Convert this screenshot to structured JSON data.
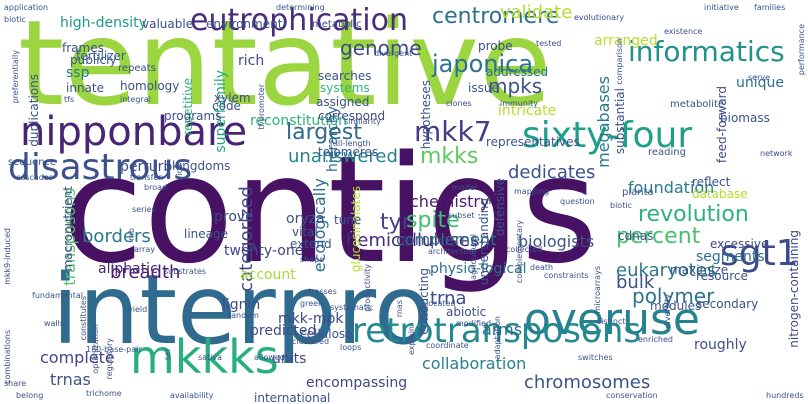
{
  "words": [
    {
      "text": "tentative",
      "color": "#9bd640",
      "rotate": 0
    },
    {
      "text": "contigs",
      "color": "#471164",
      "rotate": 0
    },
    {
      "text": "interpro",
      "color": "#2f6b8e",
      "rotate": 0
    },
    {
      "text": "nipponbare",
      "color": "#482475",
      "rotate": 0
    },
    {
      "text": "sixty-four",
      "color": "#1fa088",
      "rotate": 0
    },
    {
      "text": "disastrous",
      "color": "#3b528b",
      "rotate": 0
    },
    {
      "text": "overuse",
      "color": "#26828e",
      "rotate": 0
    },
    {
      "text": "retrotransposons",
      "color": "#23898e",
      "rotate": 0
    },
    {
      "text": "mkkks",
      "color": "#28ae80",
      "rotate": 0
    },
    {
      "text": "eutrophication",
      "color": "#472d7b",
      "rotate": 0
    },
    {
      "text": "centromere",
      "color": "#2c728e",
      "rotate": 0
    },
    {
      "text": "informatics",
      "color": "#21918c",
      "rotate": 0
    },
    {
      "text": "mkk7",
      "color": "#433e85",
      "rotate": 0
    },
    {
      "text": "mkks",
      "color": "#5ec962",
      "rotate": 0
    },
    {
      "text": "largest",
      "color": "#31688e",
      "rotate": 0
    },
    {
      "text": "sgt1",
      "color": "#3e4a89",
      "rotate": 0
    },
    {
      "text": "revolution",
      "color": "#2db27d",
      "rotate": 0
    },
    {
      "text": "unanswered",
      "color": "#25858e",
      "rotate": 0
    },
    {
      "text": "eukaryotes",
      "color": "#2a788e",
      "rotate": 0
    },
    {
      "text": "chromosomes",
      "color": "#3b528b",
      "rotate": 0
    },
    {
      "text": "hemicelluloses",
      "color": "#482878",
      "rotate": 0
    },
    {
      "text": "physio-logical",
      "color": "#2c728e",
      "rotate": 0
    },
    {
      "text": "breadth",
      "color": "#482071",
      "rotate": 0
    },
    {
      "text": "twenty-one",
      "color": "#414487",
      "rotate": 0
    },
    {
      "text": "complete",
      "color": "#414487",
      "rotate": 0
    },
    {
      "text": "collaboration",
      "color": "#26828e",
      "rotate": 0
    },
    {
      "text": "encompassing",
      "color": "#3f4889",
      "rotate": 0
    },
    {
      "text": "validate",
      "color": "#b5de2b",
      "rotate": 0
    },
    {
      "text": "tyr",
      "color": "#414487",
      "rotate": 0
    },
    {
      "text": "spite",
      "color": "#44bf70",
      "rotate": 0
    },
    {
      "text": "foundation",
      "color": "#287d8e",
      "rotate": 0
    },
    {
      "text": "dedicates",
      "color": "#3b528b",
      "rotate": 0
    },
    {
      "text": "percent",
      "color": "#46c06f",
      "rotate": 0
    },
    {
      "text": "chemistry",
      "color": "#481d6f",
      "rotate": 0
    },
    {
      "text": "biologists",
      "color": "#3b528b",
      "rotate": 0
    },
    {
      "text": "polymer",
      "color": "#2c728e",
      "rotate": 0
    },
    {
      "text": "genome",
      "color": "#3e4989",
      "rotate": 0
    },
    {
      "text": "japonica",
      "color": "#2c728e",
      "rotate": 0
    },
    {
      "text": "mpks",
      "color": "#3b528b",
      "rotate": 0
    },
    {
      "text": "transposons",
      "color": "#54c568",
      "rotate": 90
    },
    {
      "text": "categorized",
      "color": "#3f4788",
      "rotate": 90
    },
    {
      "text": "ecologically",
      "color": "#2e6f8e",
      "rotate": 90
    },
    {
      "text": "borders",
      "color": "#2a788e",
      "rotate": 0
    },
    {
      "text": "complement",
      "color": "#2c728e",
      "rotate": 0
    },
    {
      "text": "arms",
      "color": "#2e6e8e",
      "rotate": 0
    },
    {
      "text": "trnas",
      "color": "#3a548c",
      "rotate": 0
    },
    {
      "text": "trna",
      "color": "#3e4c8a",
      "rotate": 0
    },
    {
      "text": "bulk",
      "color": "#3b528b",
      "rotate": 0
    },
    {
      "text": "roughly",
      "color": "#3b528b",
      "rotate": 0
    },
    {
      "text": "segments",
      "color": "#2e6e8e",
      "rotate": 0
    },
    {
      "text": "reconstitution",
      "color": "#2fb47c",
      "rotate": 0
    },
    {
      "text": "megabases",
      "color": "#2a788e",
      "rotate": 90
    },
    {
      "text": "hierarchy",
      "color": "#2e6f8e",
      "rotate": 90
    },
    {
      "text": "arranged",
      "color": "#b8de29",
      "rotate": 0
    },
    {
      "text": "superfamily",
      "color": "#22a785",
      "rotate": 90
    },
    {
      "text": "mkk-mpk",
      "color": "#3e4a89",
      "rotate": 0
    },
    {
      "text": "fertilizer",
      "color": "#375b8d",
      "rotate": 0
    },
    {
      "text": "high-density",
      "color": "#1f988b",
      "rotate": 0
    },
    {
      "text": "ssp",
      "color": "#2a788e",
      "rotate": 0
    },
    {
      "text": "predicted",
      "color": "#3e4a89",
      "rotate": 0
    },
    {
      "text": "account",
      "color": "#a5db36",
      "rotate": 0
    },
    {
      "text": "units",
      "color": "#3e4a89",
      "rotate": 0
    },
    {
      "text": "aliphatic",
      "color": "#482878",
      "rotate": 0
    },
    {
      "text": "prove",
      "color": "#3e4a89",
      "rotate": 0
    },
    {
      "text": "oryza",
      "color": "#3b528b",
      "rotate": 0
    },
    {
      "text": "vital",
      "color": "#3b528b",
      "rotate": 0
    },
    {
      "text": "extend",
      "color": "#39558c",
      "rotate": 0
    },
    {
      "text": "maximize",
      "color": "#3b528b",
      "rotate": 0
    },
    {
      "text": "excessive",
      "color": "#3e4a89",
      "rotate": 0
    },
    {
      "text": "defensive",
      "color": "#3b528b",
      "rotate": 90
    },
    {
      "text": "understanding",
      "color": "#3b528b",
      "rotate": 90
    },
    {
      "text": "glucosinolates",
      "color": "#b5de2b",
      "rotate": 90
    },
    {
      "text": "rich",
      "color": "#3e4a89",
      "rotate": 0
    },
    {
      "text": "searches",
      "color": "#3b528b",
      "rotate": 0
    },
    {
      "text": "systems",
      "color": "#2fb47c",
      "rotate": 0
    },
    {
      "text": "assigned",
      "color": "#3b528b",
      "rotate": 0
    },
    {
      "text": "addressed",
      "color": "#2c728e",
      "rotate": 0
    },
    {
      "text": "probe",
      "color": "#3e4a89",
      "rotate": 0
    },
    {
      "text": "issue",
      "color": "#3b528b",
      "rotate": 0
    },
    {
      "text": "unique",
      "color": "#2e6e8e",
      "rotate": 0
    },
    {
      "text": "feed-forward",
      "color": "#3e4a89",
      "rotate": 90
    },
    {
      "text": "substantial",
      "color": "#3b528b",
      "rotate": 90
    },
    {
      "text": "biomass",
      "color": "#3b528b",
      "rotate": 0
    },
    {
      "text": "metabolite",
      "color": "#3b528b",
      "rotate": 0
    },
    {
      "text": "correspond",
      "color": "#3e4a89",
      "rotate": 0
    },
    {
      "text": "telomeres",
      "color": "#3b528b",
      "rotate": 0
    },
    {
      "text": "representatives",
      "color": "#3b528b",
      "rotate": 0
    },
    {
      "text": "tune",
      "color": "#3b528b",
      "rotate": 0
    },
    {
      "text": "intricate",
      "color": "#b5de2b",
      "rotate": 0
    },
    {
      "text": "reading",
      "color": "#3b528b",
      "rotate": 0
    },
    {
      "text": "reflect",
      "color": "#3b528b",
      "rotate": 0
    },
    {
      "text": "database",
      "color": "#b5de2b",
      "rotate": 0
    },
    {
      "text": "kingdoms",
      "color": "#3b528b",
      "rotate": 0
    },
    {
      "text": "perturb",
      "color": "#3e4a89",
      "rotate": 0
    },
    {
      "text": "lineage",
      "color": "#3b528b",
      "rotate": 0
    },
    {
      "text": "lignin",
      "color": "#3e4a89",
      "rotate": 0
    },
    {
      "text": "cellulose",
      "color": "#3b528b",
      "rotate": 0
    },
    {
      "text": "conducting",
      "color": "#3b528b",
      "rotate": 90
    },
    {
      "text": "abiotic",
      "color": "#3e4a89",
      "rotate": 0
    },
    {
      "text": "modules",
      "color": "#3b528b",
      "rotate": 0
    },
    {
      "text": "secondary",
      "color": "#3b528b",
      "rotate": 0
    },
    {
      "text": "resource",
      "color": "#3b528b",
      "rotate": 0
    },
    {
      "text": "nitrogen-containing",
      "color": "#3e4a89",
      "rotate": 90
    },
    {
      "text": "cdnas",
      "color": "#3b528b",
      "rotate": 0
    },
    {
      "text": "planta",
      "color": "#3b528b",
      "rotate": 0
    },
    {
      "text": "macronutrient",
      "color": "#3b528b",
      "rotate": 90
    },
    {
      "text": "repetitive",
      "color": "#2fb47c",
      "rotate": 90
    },
    {
      "text": "xylem",
      "color": "#3e4a89",
      "rotate": 0
    },
    {
      "text": "code",
      "color": "#3b528b",
      "rotate": 0
    },
    {
      "text": "homology",
      "color": "#3b528b",
      "rotate": 0
    },
    {
      "text": "programs",
      "color": "#3b528b",
      "rotate": 0
    },
    {
      "text": "duplications",
      "color": "#3b528b",
      "rotate": 90
    },
    {
      "text": "sequence",
      "color": "#3b528b",
      "rotate": 0
    },
    {
      "text": "frames",
      "color": "#3b528b",
      "rotate": 0
    },
    {
      "text": "publicly",
      "color": "#3b528b",
      "rotate": 0
    },
    {
      "text": "innate",
      "color": "#3b528b",
      "rotate": 0
    },
    {
      "text": "valuable",
      "color": "#3e4a89",
      "rotate": 0
    },
    {
      "text": "environment",
      "color": "#3b528b",
      "rotate": 0
    },
    {
      "text": "metabolic",
      "color": "#3b528b",
      "rotate": 0
    },
    {
      "text": "repeats",
      "color": "#3b528b",
      "rotate": 0
    },
    {
      "text": "hypotheses",
      "color": "#3b528b",
      "rotate": 90
    },
    {
      "text": "evolutionary",
      "color": "#3e4a89",
      "rotate": 0
    },
    {
      "text": "divergent",
      "color": "#3b528b",
      "rotate": 0
    },
    {
      "text": "tested",
      "color": "#3b528b",
      "rotate": 0
    },
    {
      "text": "existence",
      "color": "#3b528b",
      "rotate": 0
    },
    {
      "text": "initiative",
      "color": "#3b528b",
      "rotate": 0
    },
    {
      "text": "families",
      "color": "#3b528b",
      "rotate": 0
    },
    {
      "text": "serve",
      "color": "#3b528b",
      "rotate": 0
    },
    {
      "text": "performance",
      "color": "#3b528b",
      "rotate": 90
    },
    {
      "text": "application",
      "color": "#3b528b",
      "rotate": 0
    },
    {
      "text": "biotic",
      "color": "#3b528b",
      "rotate": 0
    },
    {
      "text": "determining",
      "color": "#3b528b",
      "rotate": 0
    },
    {
      "text": "tfs",
      "color": "#3b528b",
      "rotate": 0
    },
    {
      "text": "integral",
      "color": "#3b528b",
      "rotate": 0
    },
    {
      "text": "similarity",
      "color": "#3b528b",
      "rotate": 0
    },
    {
      "text": "full-length",
      "color": "#3b528b",
      "rotate": 0
    },
    {
      "text": "clones",
      "color": "#3b528b",
      "rotate": 0
    },
    {
      "text": "immunity",
      "color": "#3b528b",
      "rotate": 0
    },
    {
      "text": "comparison",
      "color": "#3b528b",
      "rotate": 90
    },
    {
      "text": "network",
      "color": "#3b528b",
      "rotate": 0
    },
    {
      "text": "tf/promoter",
      "color": "#3b528b",
      "rotate": 90
    },
    {
      "text": "preferentially",
      "color": "#3b528b",
      "rotate": 90
    },
    {
      "text": "cascades",
      "color": "#3b528b",
      "rotate": 0
    },
    {
      "text": "transfer",
      "color": "#3b528b",
      "rotate": 0
    },
    {
      "text": "broad",
      "color": "#3b528b",
      "rotate": 0
    },
    {
      "text": "series",
      "color": "#3b528b",
      "rotate": 0
    },
    {
      "text": "mb",
      "color": "#3b528b",
      "rotate": 90
    },
    {
      "text": "rice",
      "color": "#3b528b",
      "rotate": 90
    },
    {
      "text": "model",
      "color": "#3b528b",
      "rotate": 0
    },
    {
      "text": "mapping",
      "color": "#3b528b",
      "rotate": 0
    },
    {
      "text": "question",
      "color": "#3b528b",
      "rotate": 0
    },
    {
      "text": "biotic",
      "color": "#3b528b",
      "rotate": 0
    },
    {
      "text": "subset",
      "color": "#3b528b",
      "rotate": 0
    },
    {
      "text": "agricultural",
      "color": "#3b528b",
      "rotate": 90
    },
    {
      "text": "complementary",
      "color": "#3b528b",
      "rotate": 90
    },
    {
      "text": "collected",
      "color": "#3b528b",
      "rotate": 0
    },
    {
      "text": "mkk9-induced",
      "color": "#3b528b",
      "rotate": 90
    },
    {
      "text": "array",
      "color": "#3b528b",
      "rotate": 0
    },
    {
      "text": "substrates",
      "color": "#3b528b",
      "rotate": 0
    },
    {
      "text": "shape",
      "color": "#3b528b",
      "rotate": 0
    },
    {
      "text": "architecture",
      "color": "#3b528b",
      "rotate": 0
    },
    {
      "text": "death",
      "color": "#3b528b",
      "rotate": 0
    },
    {
      "text": "constraints",
      "color": "#3b528b",
      "rotate": 0
    },
    {
      "text": "fundamental",
      "color": "#3b528b",
      "rotate": 0
    },
    {
      "text": "stresses",
      "color": "#3b528b",
      "rotate": 0
    },
    {
      "text": "productivity",
      "color": "#3b528b",
      "rotate": 90
    },
    {
      "text": "rnas",
      "color": "#3b528b",
      "rotate": 90
    },
    {
      "text": "located",
      "color": "#3b528b",
      "rotate": 0
    },
    {
      "text": "microarrays",
      "color": "#3b528b",
      "rotate": 90
    },
    {
      "text": "walls",
      "color": "#3b528b",
      "rotate": 0
    },
    {
      "text": "constitutes",
      "color": "#3b528b",
      "rotate": 90
    },
    {
      "text": "yield",
      "color": "#3b528b",
      "rotate": 0
    },
    {
      "text": "tandem",
      "color": "#3b528b",
      "rotate": 0
    },
    {
      "text": "green",
      "color": "#3b528b",
      "rotate": 0
    },
    {
      "text": "systematic",
      "color": "#3b528b",
      "rotate": 0
    },
    {
      "text": "explain",
      "color": "#3b528b",
      "rotate": 90
    },
    {
      "text": "distinct",
      "color": "#3b528b",
      "rotate": 0
    },
    {
      "text": "modified",
      "color": "#3b528b",
      "rotate": 0
    },
    {
      "text": "adaptation",
      "color": "#3b528b",
      "rotate": 90
    },
    {
      "text": "diversity",
      "color": "#3b528b",
      "rotate": 90
    },
    {
      "text": "regulatory",
      "color": "#3b528b",
      "rotate": 90
    },
    {
      "text": "optimization",
      "color": "#3b528b",
      "rotate": 90
    },
    {
      "text": "180-base-pair",
      "color": "#3b528b",
      "rotate": 0
    },
    {
      "text": "ser",
      "color": "#3b528b",
      "rotate": 90
    },
    {
      "text": "sativa",
      "color": "#3b528b",
      "rotate": 0
    },
    {
      "text": "allowed",
      "color": "#3b528b",
      "rotate": 0
    },
    {
      "text": "clustered",
      "color": "#3b528b",
      "rotate": 0
    },
    {
      "text": "loops",
      "color": "#3b528b",
      "rotate": 0
    },
    {
      "text": "coordinate",
      "color": "#3b528b",
      "rotate": 0
    },
    {
      "text": "switches",
      "color": "#3b528b",
      "rotate": 0
    },
    {
      "text": "enriched",
      "color": "#3b528b",
      "rotate": 0
    },
    {
      "text": "combinations",
      "color": "#3b528b",
      "rotate": 90
    },
    {
      "text": "share",
      "color": "#3b528b",
      "rotate": 0
    },
    {
      "text": "trichome",
      "color": "#3b528b",
      "rotate": 0
    },
    {
      "text": "belong",
      "color": "#3b528b",
      "rotate": 0
    },
    {
      "text": "availability",
      "color": "#3b528b",
      "rotate": 0
    },
    {
      "text": "international",
      "color": "#3b528b",
      "rotate": 0
    },
    {
      "text": "conservation",
      "color": "#3b528b",
      "rotate": 0
    },
    {
      "text": "hundreds",
      "color": "#3b528b",
      "rotate": 0
    }
  ]
}
